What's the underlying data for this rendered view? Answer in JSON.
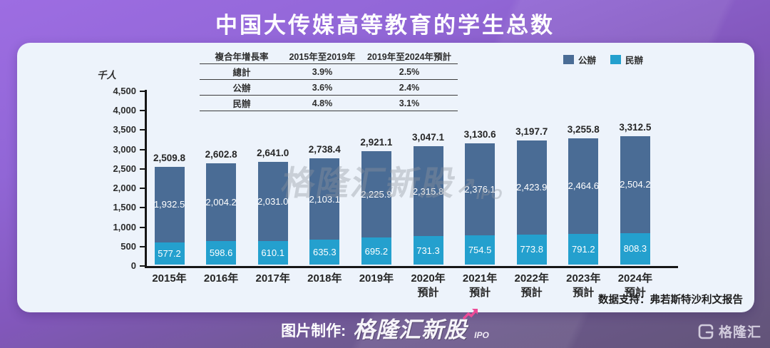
{
  "title": "中国大传媒高等教育的学生总数",
  "unit_label": "千人",
  "cagr_table": {
    "header": [
      "複合年增長率",
      "2015年至2019年",
      "2019年至2024年預計"
    ],
    "rows": [
      {
        "label": "總計",
        "v1": "3.9%",
        "v2": "2.5%"
      },
      {
        "label": "公辦",
        "v1": "3.6%",
        "v2": "2.4%"
      },
      {
        "label": "民辦",
        "v1": "4.8%",
        "v2": "3.1%"
      }
    ]
  },
  "legend": [
    {
      "label": "公辦",
      "color": "#4a6c95"
    },
    {
      "label": "民辦",
      "color": "#24a0ce"
    }
  ],
  "chart_data": {
    "type": "bar",
    "stacked": true,
    "title": "中国大传媒高等教育的学生总数",
    "ylabel": "千人",
    "ylim": [
      0,
      4500
    ],
    "grid": false,
    "legend_position": "top-right",
    "yticks": [
      {
        "value": 4500,
        "label": "4,500"
      },
      {
        "value": 4000,
        "label": "4,000"
      },
      {
        "value": 3500,
        "label": "3,500"
      },
      {
        "value": 3000,
        "label": "3,000"
      },
      {
        "value": 2500,
        "label": "2,500"
      },
      {
        "value": 2000,
        "label": "2,000"
      },
      {
        "value": 1500,
        "label": "1,500"
      },
      {
        "value": 1000,
        "label": "1,000"
      },
      {
        "value": 500,
        "label": "500"
      },
      {
        "value": 0,
        "label": "0"
      }
    ],
    "categories": [
      {
        "line1": "2015年",
        "line2": ""
      },
      {
        "line1": "2016年",
        "line2": ""
      },
      {
        "line1": "2017年",
        "line2": ""
      },
      {
        "line1": "2018年",
        "line2": ""
      },
      {
        "line1": "2019年",
        "line2": ""
      },
      {
        "line1": "2020年",
        "line2": "預計"
      },
      {
        "line1": "2021年",
        "line2": "預計"
      },
      {
        "line1": "2022年",
        "line2": "預計"
      },
      {
        "line1": "2023年",
        "line2": "預計"
      },
      {
        "line1": "2024年",
        "line2": "預計"
      }
    ],
    "series": [
      {
        "name": "公辦",
        "color": "#4a6c95",
        "values": [
          1932.5,
          2004.2,
          2031.0,
          2103.1,
          2225.9,
          2315.8,
          2376.1,
          2423.9,
          2464.6,
          2504.2
        ],
        "labels": [
          "1,932.5",
          "2,004.2",
          "2,031.0",
          "2,103.1",
          "2,225.9",
          "2,315.8",
          "2,376.1",
          "2,423.9",
          "2,464.6",
          "2,504.2"
        ]
      },
      {
        "name": "民辦",
        "color": "#24a0ce",
        "values": [
          577.2,
          598.6,
          610.1,
          635.3,
          695.2,
          731.3,
          754.5,
          773.8,
          791.2,
          808.3
        ],
        "labels": [
          "577.2",
          "598.6",
          "610.1",
          "635.3",
          "695.2",
          "731.3",
          "754.5",
          "773.8",
          "791.2",
          "808.3"
        ]
      }
    ],
    "totals": [
      2509.8,
      2602.8,
      2641.0,
      2738.4,
      2921.1,
      3047.1,
      3130.6,
      3197.7,
      3255.8,
      3312.5
    ],
    "total_labels": [
      "2,509.8",
      "2,602.8",
      "2,641.0",
      "2,738.4",
      "2,921.1",
      "3,047.1",
      "3,130.6",
      "3,197.7",
      "3,255.8",
      "3,312.5"
    ]
  },
  "watermark": {
    "text": "格隆汇新股",
    "arrow": "↗",
    "suffix": "IPO"
  },
  "source": "数据支持：弗若斯特沙利文报告",
  "footer": {
    "prefix": "图片制作:",
    "logo_text": "格隆汇新股",
    "logo_suffix": "IPO"
  },
  "corner_logo": {
    "text": "格隆汇"
  },
  "colors": {
    "background_top": "#9d6de2",
    "background_bottom": "#625478",
    "card": "#edf3fb",
    "bar_public": "#4a6c95",
    "bar_private": "#24a0ce",
    "brand_pink": "#ed4b97",
    "text_dark": "#262626"
  }
}
